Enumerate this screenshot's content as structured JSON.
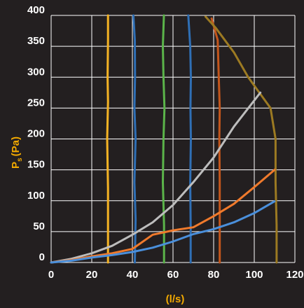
{
  "chart_data": {
    "type": "line",
    "title": "",
    "xlabel": "(l/s)",
    "ylabel": "P",
    "ylabel_sub": "s",
    "ylabel_unit": "(Pa)",
    "xlim": [
      0,
      120
    ],
    "ylim": [
      0,
      400
    ],
    "x_ticks": [
      0,
      20,
      40,
      60,
      80,
      100,
      120
    ],
    "y_ticks": [
      0,
      50,
      100,
      150,
      200,
      250,
      300,
      350,
      400
    ],
    "x_tick_labels": [
      "0",
      "20",
      "40",
      "60",
      "80",
      "100",
      "120"
    ],
    "y_tick_labels": [
      "0",
      "50",
      "100",
      "150",
      "200",
      "250",
      "300",
      "350",
      "400"
    ],
    "grid": true,
    "legend": "none",
    "series": [
      {
        "color": "#f5b324",
        "points": [
          [
            28,
            400
          ],
          [
            28,
            360
          ],
          [
            27.8,
            300
          ],
          [
            28,
            260
          ],
          [
            27.6,
            200
          ],
          [
            28,
            120
          ],
          [
            28,
            60
          ],
          [
            28,
            0
          ]
        ]
      },
      {
        "color": "#2f6fb5",
        "points": [
          [
            40.5,
            400
          ],
          [
            41.2,
            360
          ],
          [
            41.3,
            300
          ],
          [
            41,
            250
          ],
          [
            41.6,
            200
          ],
          [
            41,
            130
          ],
          [
            41.6,
            70
          ],
          [
            41.2,
            0
          ]
        ]
      },
      {
        "color": "#5bb44a",
        "points": [
          [
            55.5,
            400
          ],
          [
            55,
            350
          ],
          [
            55.3,
            300
          ],
          [
            55.8,
            250
          ],
          [
            55.3,
            200
          ],
          [
            55,
            130
          ],
          [
            55.6,
            60
          ],
          [
            55.6,
            0
          ]
        ]
      },
      {
        "color": "#2f6fb5",
        "points": [
          [
            67.5,
            400
          ],
          [
            68.5,
            350
          ],
          [
            68.8,
            300
          ],
          [
            68.6,
            250
          ],
          [
            68.8,
            200
          ],
          [
            68.5,
            130
          ],
          [
            68.7,
            60
          ],
          [
            68.7,
            0
          ]
        ]
      },
      {
        "color": "#c4561c",
        "points": [
          [
            79,
            395
          ],
          [
            82,
            360
          ],
          [
            82.5,
            300
          ],
          [
            83,
            250
          ],
          [
            82.8,
            200
          ],
          [
            83,
            130
          ],
          [
            83,
            60
          ],
          [
            83,
            0
          ]
        ]
      },
      {
        "color": "#9c7a22",
        "points": [
          [
            76,
            398
          ],
          [
            81,
            380
          ],
          [
            90,
            340
          ],
          [
            97,
            300
          ],
          [
            108,
            250
          ],
          [
            110.5,
            200
          ],
          [
            110.5,
            130
          ],
          [
            111,
            60
          ],
          [
            111,
            0
          ]
        ]
      },
      {
        "color": "#bdbdbd",
        "points": [
          [
            0,
            0
          ],
          [
            10,
            6
          ],
          [
            20,
            15
          ],
          [
            30,
            27
          ],
          [
            40,
            45
          ],
          [
            50,
            65
          ],
          [
            60,
            93
          ],
          [
            70,
            130
          ],
          [
            80,
            170
          ],
          [
            90,
            220
          ],
          [
            103,
            275
          ]
        ]
      },
      {
        "color": "#f07a2c",
        "points": [
          [
            0,
            0
          ],
          [
            10,
            4
          ],
          [
            20,
            10
          ],
          [
            30,
            15
          ],
          [
            40,
            22
          ],
          [
            50,
            45
          ],
          [
            60,
            52
          ],
          [
            70,
            57
          ],
          [
            80,
            75
          ],
          [
            90,
            95
          ],
          [
            100,
            122
          ],
          [
            110,
            150
          ]
        ]
      },
      {
        "color": "#4a8fdb",
        "points": [
          [
            0,
            0
          ],
          [
            10,
            3
          ],
          [
            20,
            8
          ],
          [
            30,
            12
          ],
          [
            40,
            17
          ],
          [
            50,
            24
          ],
          [
            60,
            34
          ],
          [
            70,
            46
          ],
          [
            80,
            54
          ],
          [
            90,
            65
          ],
          [
            100,
            80
          ],
          [
            110,
            99
          ]
        ]
      }
    ]
  }
}
